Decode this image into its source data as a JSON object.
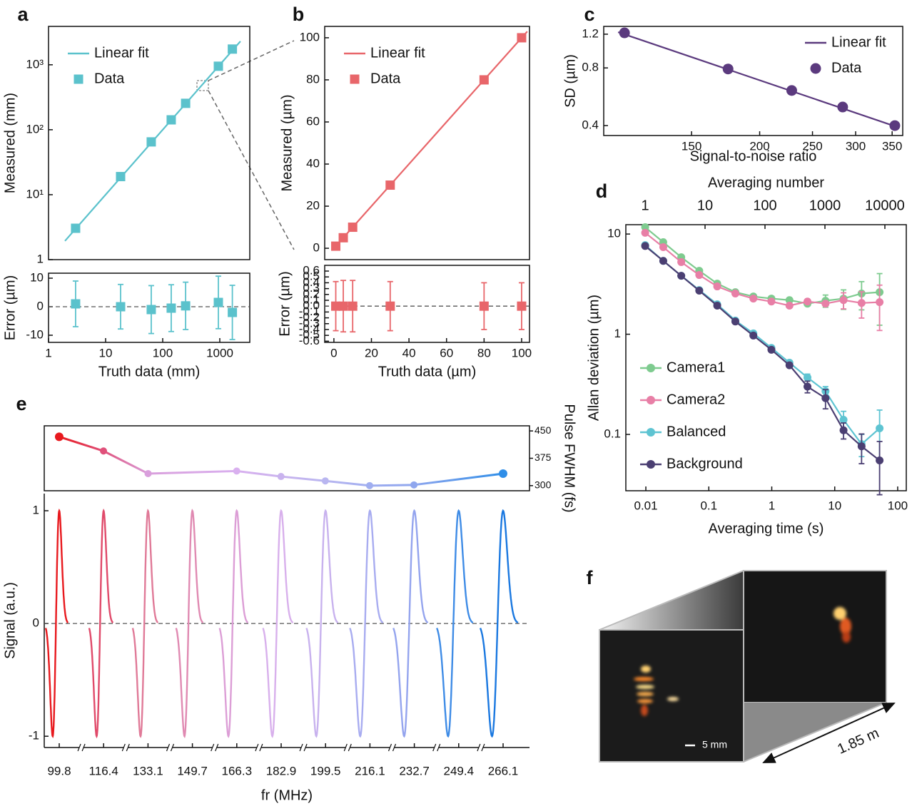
{
  "chart_data": [
    {
      "label": "a",
      "type": "line_scatter",
      "ylabel": "Measured (mm)",
      "xscale": "log",
      "yscale": "log",
      "xlim": [
        1,
        3350
      ],
      "ylim": [
        1,
        3900
      ],
      "yticks": [
        1,
        {
          "value": 10,
          "label": "10¹"
        },
        {
          "value": 100,
          "label": "10²"
        },
        {
          "value": 1000,
          "label": "10³"
        }
      ],
      "legend": "upper left",
      "series": [
        {
          "name": "Linear fit",
          "kind": "line",
          "color": "#5bc2cc",
          "x": [
            1.94,
            2300
          ],
          "values": [
            1.94,
            2300
          ]
        },
        {
          "name": "Data",
          "kind": "marker",
          "marker": "square",
          "color": "#5bc2cc",
          "x": [
            2.98,
            18.3,
            63,
            141,
            252,
            944,
            1660
          ],
          "values": [
            3.04,
            19,
            65,
            142,
            255,
            950,
            1745
          ]
        }
      ]
    },
    {
      "type": "errorbar",
      "xlabel": "Truth data (mm)",
      "ylabel": "Error (µm)",
      "xscale": "log",
      "xlim": [
        1,
        3350
      ],
      "xticks": [
        1,
        10,
        100,
        1000
      ],
      "ylim": [
        -12.5,
        11.75
      ],
      "yticks": [
        -10,
        0,
        10
      ],
      "zero_line": true,
      "series": [
        {
          "kind": "marker",
          "marker": "square",
          "color": "#5bc2cc",
          "x": [
            2.98,
            18.3,
            63,
            141,
            252,
            944,
            1660
          ],
          "values": [
            1,
            0,
            -1,
            -0.5,
            0.3,
            1.5,
            -2
          ],
          "errors": [
            8,
            7.8,
            8.4,
            8.2,
            8.3,
            9.2,
            9.5
          ]
        }
      ]
    },
    {
      "label": "b",
      "type": "line_scatter",
      "ylabel": "Measured (µm)",
      "xlim": [
        -4.9,
        104.2
      ],
      "ylim": [
        -5.4,
        105.4
      ],
      "yticks": [
        0,
        20,
        40,
        60,
        80,
        100
      ],
      "legend": "upper left",
      "series": [
        {
          "name": "Linear fit",
          "kind": "line",
          "color": "#e8666a",
          "x": [
            -1,
            103
          ],
          "values": [
            -1,
            103
          ]
        },
        {
          "name": "Data",
          "kind": "marker",
          "marker": "square",
          "color": "#e8666a",
          "x": [
            1,
            5,
            10,
            30,
            80,
            100
          ],
          "values": [
            1,
            5,
            10,
            30,
            80,
            100
          ]
        }
      ]
    },
    {
      "type": "errorbar",
      "xlabel": "Truth data (µm)",
      "ylabel": "Error (µm)",
      "xlim": [
        -4.9,
        104.2
      ],
      "xticks": [
        0,
        20,
        40,
        60,
        80,
        100
      ],
      "ylim": [
        -0.62,
        0.698
      ],
      "yticks": [
        -0.6,
        -0.5,
        -0.4,
        -0.3,
        -0.2,
        -0.1,
        {
          "value": 0,
          "label": "0.0"
        },
        0.1,
        0.2,
        0.3,
        0.4,
        0.5,
        0.6
      ],
      "zero_line": true,
      "series": [
        {
          "kind": "marker",
          "marker": "square",
          "color": "#e8666a",
          "x": [
            1,
            5,
            10,
            30,
            80,
            100
          ],
          "values": [
            0,
            0,
            0,
            0,
            0,
            0
          ],
          "errors": [
            0.42,
            0.44,
            0.44,
            0.42,
            0.4,
            0.4
          ]
        }
      ]
    },
    {
      "label": "c",
      "type": "line_scatter",
      "xlabel": "Signal-to-noise ratio",
      "ylabel": "SD (µm)",
      "xscale": "log",
      "yscale": "log",
      "xlim": [
        103.5,
        366
      ],
      "xticks": [
        150,
        200,
        250,
        300,
        350
      ],
      "ylim": [
        0.355,
        1.318
      ],
      "yticks": [
        0.4,
        0.8,
        1.2
      ],
      "legend": "upper right",
      "series": [
        {
          "name": "Linear fit",
          "kind": "line",
          "color": "#5b3a7e",
          "x": [
            110,
            356
          ],
          "values": [
            1.23,
            0.395
          ]
        },
        {
          "name": "Data",
          "kind": "marker",
          "marker": "circle",
          "color": "#5b3a7e",
          "x": [
            113,
            175,
            229,
            284,
            354
          ],
          "values": [
            1.22,
            0.79,
            0.61,
            0.5,
            0.4
          ]
        }
      ]
    },
    {
      "label": "d",
      "type": "line_scatter",
      "xlabel": "Averaging time (s)",
      "ylabel": "Allan deviation (µm)",
      "x2label": "Averaging number",
      "xscale": "log",
      "yscale": "log",
      "xlim": [
        0.00481,
        137
      ],
      "xticks": [
        0.01,
        0.1,
        1,
        10,
        100
      ],
      "x2lim": [
        0.477,
        22760
      ],
      "x2ticks": [
        1,
        10,
        100,
        1000,
        10000
      ],
      "ylim": [
        0.0274,
        12.4
      ],
      "yticks": [
        0.1,
        1,
        10
      ],
      "legend": "lower left",
      "series": [
        {
          "name": "Camera1",
          "kind": "line_marker",
          "marker": "circle",
          "color": "#7ecb8f",
          "x": [
            0.00975,
            0.0189,
            0.0365,
            0.0705,
            0.136,
            0.264,
            0.51,
            0.987,
            1.91,
            3.69,
            7.14,
            13.8,
            26.7,
            51.6
          ],
          "values": [
            11.7,
            8.3,
            5.87,
            4.3,
            3.2,
            2.63,
            2.38,
            2.27,
            2.19,
            2.02,
            2.16,
            2.27,
            2.55,
            2.63
          ],
          "errors": [
            0,
            0,
            0,
            0,
            0,
            0,
            0,
            0,
            0,
            0,
            0.3,
            0.5,
            0.8,
            1.4
          ]
        },
        {
          "name": "Camera2",
          "kind": "line_marker",
          "marker": "circle",
          "color": "#e87fa6",
          "x": [
            0.00975,
            0.0189,
            0.0365,
            0.0705,
            0.136,
            0.264,
            0.51,
            0.987,
            1.91,
            3.69,
            7.14,
            13.8,
            26.7,
            51.6
          ],
          "values": [
            10.3,
            7.4,
            5.25,
            3.9,
            3.0,
            2.55,
            2.27,
            2.12,
            1.93,
            2.12,
            2.02,
            2.19,
            2.05,
            2.09
          ],
          "errors": [
            0,
            0,
            0,
            0,
            0,
            0,
            0,
            0,
            0,
            0,
            0,
            0.4,
            0.6,
            1.0
          ]
        },
        {
          "name": "Balanced",
          "kind": "line_marker",
          "marker": "circle",
          "color": "#5ec4d2",
          "x": [
            0.00975,
            0.0189,
            0.0365,
            0.0705,
            0.136,
            0.264,
            0.51,
            0.987,
            1.91,
            3.69,
            7.14,
            13.8,
            26.7,
            51.6
          ],
          "values": [
            7.75,
            5.4,
            3.83,
            2.76,
            1.99,
            1.37,
            1.02,
            0.73,
            0.52,
            0.37,
            0.27,
            0.14,
            0.08,
            0.115
          ],
          "errors": [
            0,
            0,
            0,
            0,
            0,
            0,
            0,
            0,
            0,
            0.03,
            0.03,
            0.03,
            0.02,
            0.06
          ]
        },
        {
          "name": "Background",
          "kind": "line_marker",
          "marker": "circle",
          "color": "#4b3f72",
          "x": [
            0.00975,
            0.0189,
            0.0365,
            0.0705,
            0.136,
            0.264,
            0.51,
            0.987,
            1.91,
            3.69,
            7.14,
            13.8,
            26.7,
            51.6
          ],
          "values": [
            7.6,
            5.4,
            3.83,
            2.72,
            1.93,
            1.34,
            0.97,
            0.7,
            0.49,
            0.3,
            0.23,
            0.11,
            0.076,
            0.055
          ],
          "errors": [
            0,
            0,
            0,
            0,
            0,
            0,
            0,
            0,
            0,
            0.04,
            0.05,
            0.02,
            0.025,
            0.03
          ]
        }
      ]
    },
    {
      "label": "e",
      "type": "line",
      "y2label": "Pulse FWHM (fs)",
      "xlim": [
        94.2,
        276
      ],
      "y2lim": [
        286,
        464
      ],
      "y2ticks": [
        300,
        375,
        450
      ],
      "series": [
        {
          "axis": "y2",
          "kind": "line_marker",
          "marker": "circle",
          "x": [
            99.8,
            116.4,
            133.1,
            166.3,
            182.9,
            199.5,
            216.1,
            232.7,
            266.1
          ],
          "values": [
            434,
            395,
            333,
            340,
            325,
            313,
            300,
            302,
            333
          ],
          "colors": [
            "#e8191e",
            "#e0507a",
            "#d99fdc",
            "#d9b0ef",
            "#c9b3ee",
            "#b9b6f0",
            "#a0aef0",
            "#8fa6ee",
            "#2f8ee8"
          ]
        }
      ]
    },
    {
      "type": "waveform",
      "xlabel": "fr (MHz)",
      "ylabel": "Signal (a.u.)",
      "categories": [
        "99.8",
        "116.4",
        "133.1",
        "149.7",
        "166.3",
        "182.9",
        "199.5",
        "216.1",
        "232.7",
        "249.4",
        "266.1"
      ],
      "colors": [
        "#e8191e",
        "#e04a6a",
        "#e07a98",
        "#e08ab2",
        "#dc9ed6",
        "#d8b0ec",
        "#c8b2ee",
        "#a8acf0",
        "#94a4ee",
        "#3f8ce6",
        "#1a78e0"
      ],
      "ylim": [
        -1.1,
        1.152
      ],
      "yticks": [
        -1,
        0,
        1
      ],
      "zero_line": true
    }
  ],
  "panel_f": {
    "label": "f",
    "scale_bar": "5 mm",
    "length": "1.85 m"
  }
}
